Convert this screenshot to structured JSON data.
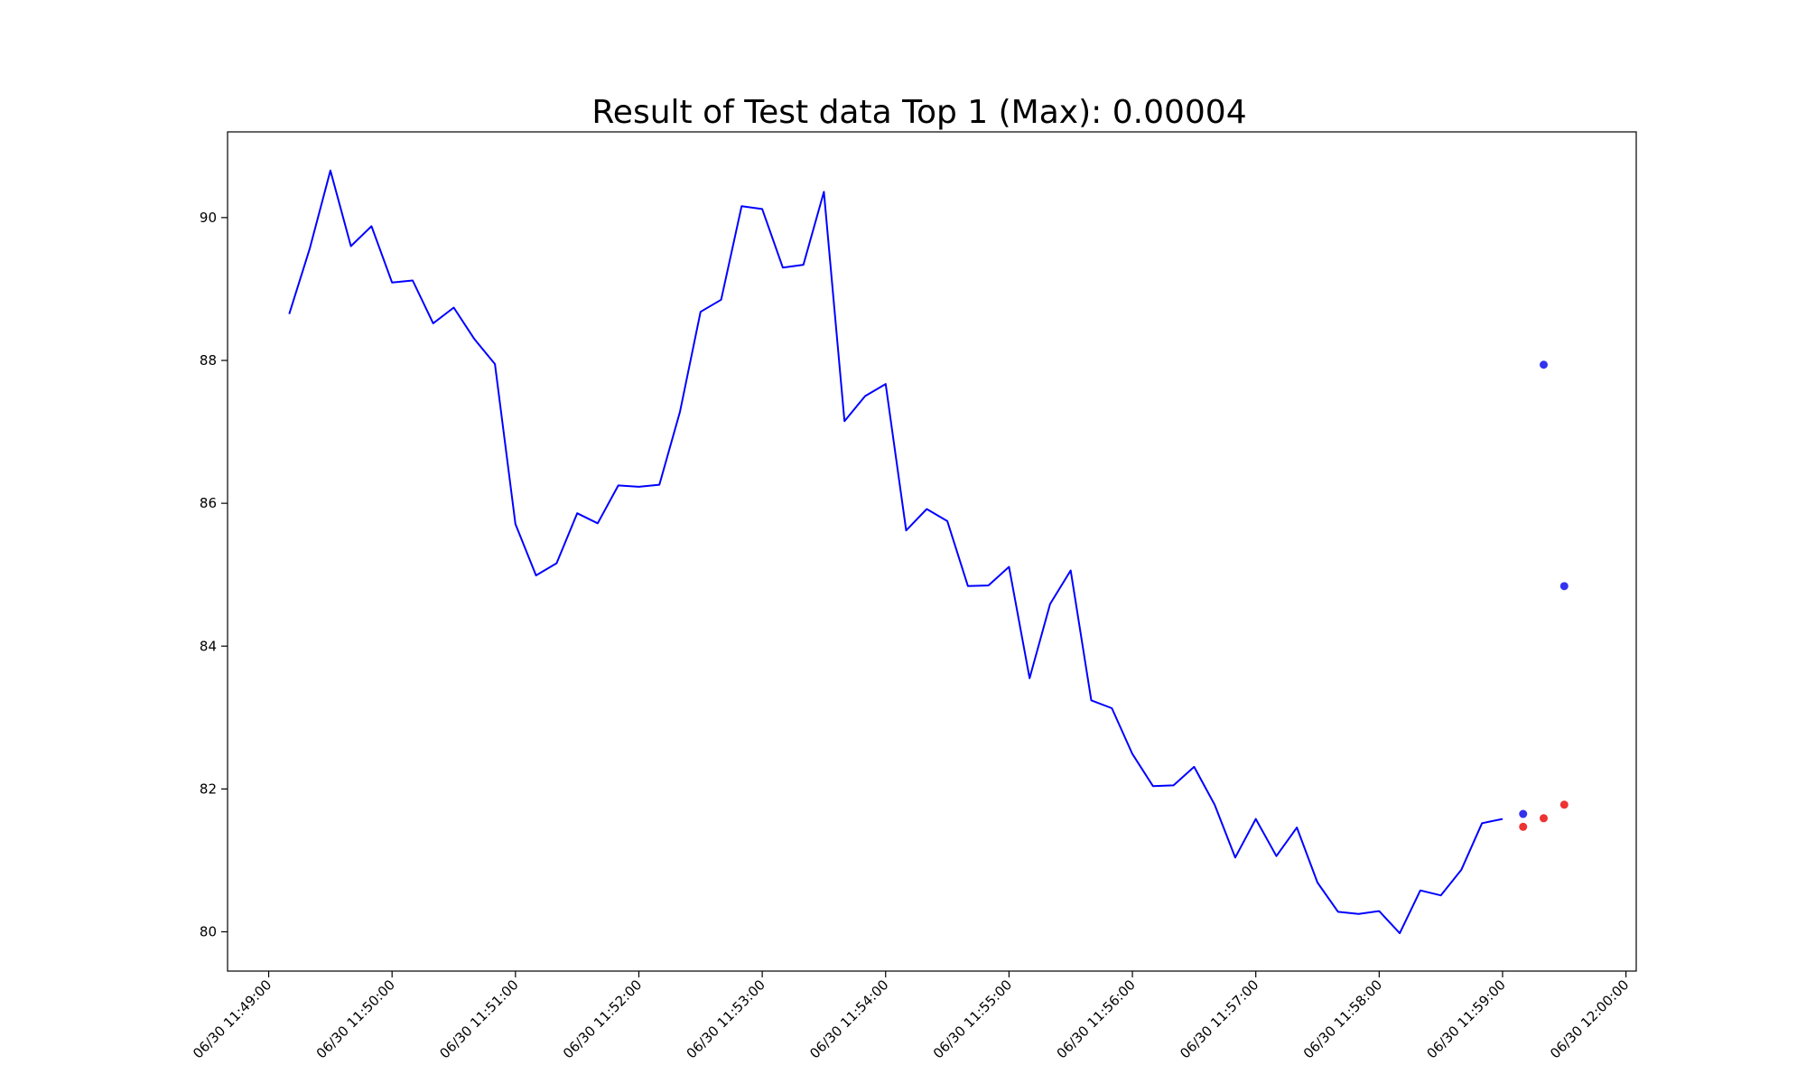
{
  "chart_data": {
    "type": "line",
    "title": "Result of Test data Top 1 (Max): 0.00004",
    "xlabel": "",
    "ylabel": "",
    "grid": false,
    "legend": "none",
    "x_ticks": [
      "06/30 11:49:00",
      "06/30 11:50:00",
      "06/30 11:51:00",
      "06/30 11:52:00",
      "06/30 11:53:00",
      "06/30 11:54:00",
      "06/30 11:55:00",
      "06/30 11:56:00",
      "06/30 11:57:00",
      "06/30 11:58:00",
      "06/30 11:59:00",
      "06/30 12:00:00"
    ],
    "y_ticks": [
      80,
      82,
      84,
      86,
      88,
      90
    ],
    "xlim": [
      "06/30 11:48:40",
      "06/30 12:00:05"
    ],
    "ylim": [
      79.45,
      91.2
    ],
    "line_color": "#0000ff",
    "x": [
      "06/30 11:49:10",
      "06/30 11:49:20",
      "06/30 11:49:30",
      "06/30 11:49:40",
      "06/30 11:49:50",
      "06/30 11:50:00",
      "06/30 11:50:10",
      "06/30 11:50:20",
      "06/30 11:50:30",
      "06/30 11:50:40",
      "06/30 11:50:50",
      "06/30 11:51:00",
      "06/30 11:51:10",
      "06/30 11:51:20",
      "06/30 11:51:30",
      "06/30 11:51:40",
      "06/30 11:51:50",
      "06/30 11:52:00",
      "06/30 11:52:10",
      "06/30 11:52:20",
      "06/30 11:52:30",
      "06/30 11:52:40",
      "06/30 11:52:50",
      "06/30 11:53:00",
      "06/30 11:53:10",
      "06/30 11:53:20",
      "06/30 11:53:30",
      "06/30 11:53:40",
      "06/30 11:53:50",
      "06/30 11:54:00",
      "06/30 11:54:10",
      "06/30 11:54:20",
      "06/30 11:54:30",
      "06/30 11:54:40",
      "06/30 11:54:50",
      "06/30 11:55:00",
      "06/30 11:55:10",
      "06/30 11:55:20",
      "06/30 11:55:30",
      "06/30 11:55:40",
      "06/30 11:55:50",
      "06/30 11:56:00",
      "06/30 11:56:10",
      "06/30 11:56:20",
      "06/30 11:56:30",
      "06/30 11:56:40",
      "06/30 11:56:50",
      "06/30 11:57:00",
      "06/30 11:57:10",
      "06/30 11:57:20",
      "06/30 11:57:30",
      "06/30 11:57:40",
      "06/30 11:57:50",
      "06/30 11:58:00",
      "06/30 11:58:10",
      "06/30 11:58:20",
      "06/30 11:58:30",
      "06/30 11:58:40",
      "06/30 11:58:50",
      "06/30 11:59:00"
    ],
    "values": [
      88.65,
      89.57,
      90.66,
      89.6,
      89.88,
      89.09,
      89.12,
      88.52,
      88.74,
      88.3,
      87.95,
      85.71,
      84.99,
      85.16,
      85.86,
      85.72,
      86.25,
      86.23,
      86.26,
      87.28,
      88.68,
      88.85,
      90.16,
      90.12,
      89.3,
      89.34,
      90.36,
      87.15,
      87.5,
      87.67,
      85.62,
      85.92,
      85.75,
      84.84,
      84.85,
      85.11,
      83.55,
      84.59,
      85.06,
      83.24,
      83.13,
      82.49,
      82.04,
      82.05,
      82.31,
      81.78,
      81.04,
      81.58,
      81.06,
      81.46,
      80.69,
      80.28,
      80.25,
      80.29,
      79.98,
      80.58,
      80.51,
      80.87,
      81.52,
      81.58
    ],
    "markers": [
      {
        "x": "06/30 11:59:10",
        "y": 81.65,
        "color": "#3333ee"
      },
      {
        "x": "06/30 11:59:20",
        "y": 87.94,
        "color": "#3333ee"
      },
      {
        "x": "06/30 11:59:30",
        "y": 84.84,
        "color": "#3333ee"
      },
      {
        "x": "06/30 11:59:10",
        "y": 81.47,
        "color": "#ee3333"
      },
      {
        "x": "06/30 11:59:20",
        "y": 81.59,
        "color": "#ee3333"
      },
      {
        "x": "06/30 11:59:30",
        "y": 81.78,
        "color": "#ee3333"
      }
    ]
  }
}
